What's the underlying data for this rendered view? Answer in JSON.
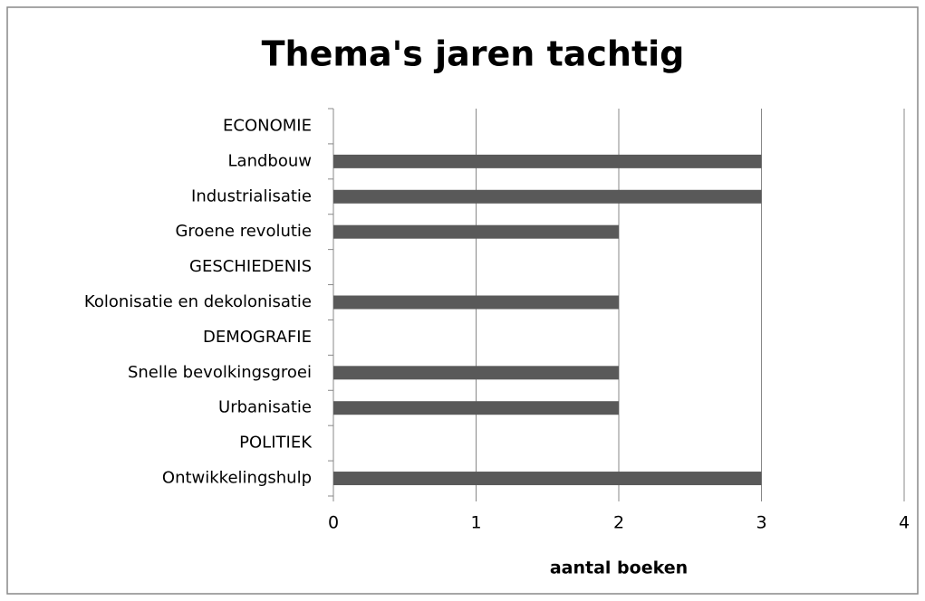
{
  "chart_data": {
    "type": "bar",
    "orientation": "horizontal",
    "title": "Thema's jaren tachtig",
    "x_label": "aantal boeken",
    "categories": [
      "ECONOMIE",
      "Landbouw",
      "Industrialisatie",
      "Groene revolutie",
      "GESCHIEDENIS",
      "Kolonisatie en dekolonisatie",
      "DEMOGRAFIE",
      "Snelle bevolkingsgroei",
      "Urbanisatie",
      "POLITIEK",
      "Ontwikkelingshulp"
    ],
    "values": [
      null,
      3,
      3,
      2,
      null,
      2,
      null,
      2,
      2,
      null,
      3
    ],
    "color": "#595959",
    "xlim": [
      0,
      4
    ],
    "xticks": [
      0,
      1,
      2,
      3,
      4
    ],
    "grid": true
  }
}
